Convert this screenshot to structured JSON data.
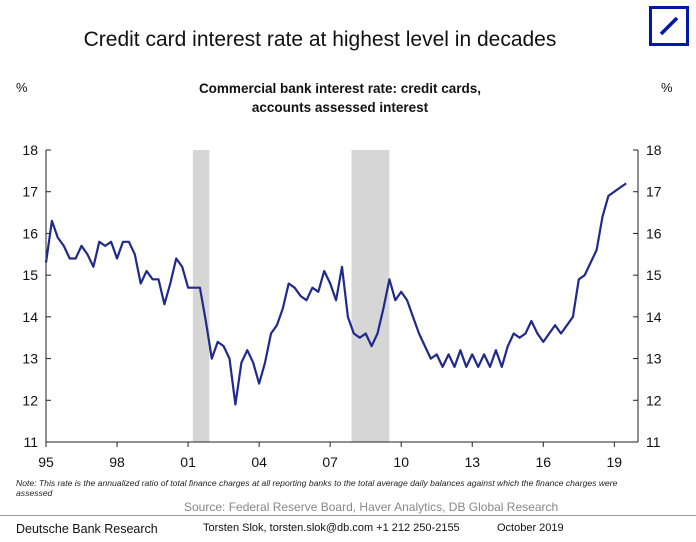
{
  "title": "Credit card interest rate at highest level in decades",
  "logo": {
    "icon": "deutsche-bank-logo-icon",
    "color": "#0018a8"
  },
  "chart_data": {
    "type": "line",
    "subtitle_lines": [
      "Commercial bank interest rate: credit cards,",
      "accounts assessed interest"
    ],
    "left_unit": "%",
    "right_unit": "%",
    "xlim": [
      1995,
      2020
    ],
    "ylim": [
      11,
      18
    ],
    "yticks": [
      11,
      12,
      13,
      14,
      15,
      16,
      17,
      18
    ],
    "xticks": [
      {
        "value": 1995,
        "label": "95"
      },
      {
        "value": 1998,
        "label": "98"
      },
      {
        "value": 2001,
        "label": "01"
      },
      {
        "value": 2004,
        "label": "04"
      },
      {
        "value": 2007,
        "label": "07"
      },
      {
        "value": 2010,
        "label": "10"
      },
      {
        "value": 2013,
        "label": "13"
      },
      {
        "value": 2016,
        "label": "16"
      },
      {
        "value": 2019,
        "label": "19"
      }
    ],
    "recession_bands": [
      [
        2001.2,
        2001.9
      ],
      [
        2007.9,
        2009.5
      ]
    ],
    "line_color": "#1f2a8c",
    "band_color": "#d6d6d6",
    "series": [
      {
        "x": [
          1995.0,
          1995.25,
          1995.5,
          1995.75,
          1996.0,
          1996.25,
          1996.5,
          1996.75,
          1997.0,
          1997.25,
          1997.5,
          1997.75,
          1998.0,
          1998.25,
          1998.5,
          1998.75,
          1999.0,
          1999.25,
          1999.5,
          1999.75,
          2000.0,
          2000.25,
          2000.5,
          2000.75,
          2001.0,
          2001.25,
          2001.5,
          2001.75,
          2002.0,
          2002.25,
          2002.5,
          2002.75,
          2003.0,
          2003.25,
          2003.5,
          2003.75,
          2004.0,
          2004.25,
          2004.5,
          2004.75,
          2005.0,
          2005.25,
          2005.5,
          2005.75,
          2006.0,
          2006.25,
          2006.5,
          2006.75,
          2007.0,
          2007.25,
          2007.5,
          2007.75,
          2008.0,
          2008.25,
          2008.5,
          2008.75,
          2009.0,
          2009.25,
          2009.5,
          2009.75,
          2010.0,
          2010.25,
          2010.5,
          2010.75,
          2011.0,
          2011.25,
          2011.5,
          2011.75,
          2012.0,
          2012.25,
          2012.5,
          2012.75,
          2013.0,
          2013.25,
          2013.5,
          2013.75,
          2014.0,
          2014.25,
          2014.5,
          2014.75,
          2015.0,
          2015.25,
          2015.5,
          2015.75,
          2016.0,
          2016.25,
          2016.5,
          2016.75,
          2017.0,
          2017.25,
          2017.5,
          2017.75,
          2018.0,
          2018.25,
          2018.5,
          2018.75,
          2019.0,
          2019.25,
          2019.5
        ],
        "y": [
          15.3,
          16.3,
          15.9,
          15.7,
          15.4,
          15.4,
          15.7,
          15.5,
          15.2,
          15.8,
          15.7,
          15.8,
          15.4,
          15.8,
          15.8,
          15.5,
          14.8,
          15.1,
          14.9,
          14.9,
          14.3,
          14.8,
          15.4,
          15.2,
          14.7,
          14.7,
          14.7,
          13.9,
          13.0,
          13.4,
          13.3,
          13.0,
          11.9,
          12.9,
          13.2,
          12.9,
          12.4,
          12.9,
          13.6,
          13.8,
          14.2,
          14.8,
          14.7,
          14.5,
          14.4,
          14.7,
          14.6,
          15.1,
          14.8,
          14.4,
          15.2,
          14.0,
          13.6,
          13.5,
          13.6,
          13.3,
          13.6,
          14.2,
          14.9,
          14.4,
          14.6,
          14.4,
          14.0,
          13.6,
          13.3,
          13.0,
          13.1,
          12.8,
          13.1,
          12.8,
          13.2,
          12.8,
          13.1,
          12.8,
          13.1,
          12.8,
          13.2,
          12.8,
          13.3,
          13.6,
          13.5,
          13.6,
          13.9,
          13.6,
          13.4,
          13.6,
          13.8,
          13.6,
          13.8,
          14.0,
          14.9,
          15.0,
          15.3,
          15.6,
          16.4,
          16.9,
          17.0,
          17.1,
          17.2
        ]
      }
    ]
  },
  "note": "Note: This rate is the annualized ratio of total finance charges at all reporting banks to the total average daily balances against which the finance charges were assessed",
  "source": "Source: Federal Reserve Board, Haver Analytics, DB Global Research",
  "footer": {
    "org": "Deutsche Bank Research",
    "author": "Torsten Slok, torsten.slok@db.com  +1 212 250-2155",
    "date": "October 2019"
  }
}
